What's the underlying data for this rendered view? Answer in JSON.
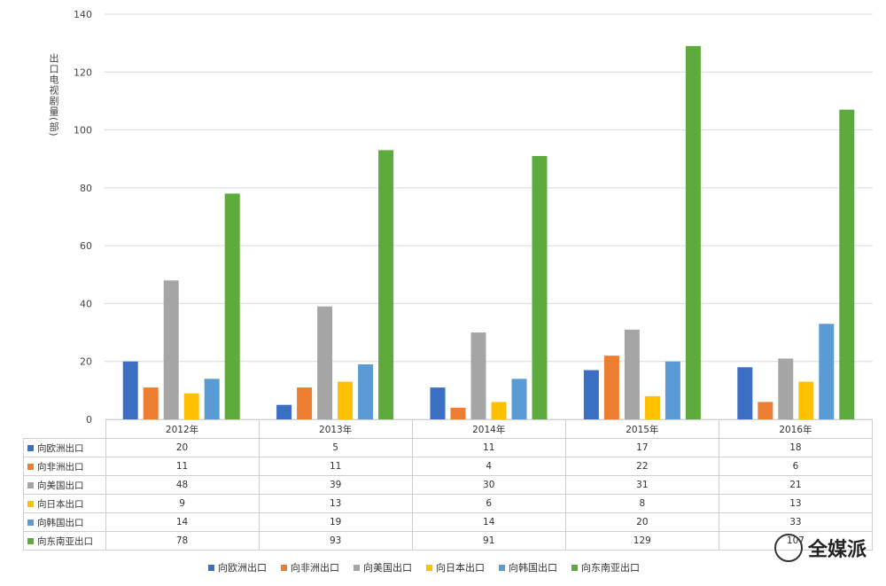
{
  "chart_data": {
    "type": "bar",
    "categories": [
      "2012年",
      "2013年",
      "2014年",
      "2015年",
      "2016年"
    ],
    "ylabel": "出口电视剧量(部)",
    "ylim": [
      0,
      140
    ],
    "yticks": [
      0,
      20,
      40,
      60,
      80,
      100,
      120,
      140
    ],
    "grid": true,
    "legend_position": "bottom",
    "series": [
      {
        "name": "向欧洲出口",
        "color": "#3a6fc4",
        "values": [
          20,
          5,
          11,
          17,
          18
        ]
      },
      {
        "name": "向非洲出口",
        "color": "#ed7d31",
        "values": [
          11,
          11,
          4,
          22,
          6
        ]
      },
      {
        "name": "向美国出口",
        "color": "#a5a5a5",
        "values": [
          48,
          39,
          30,
          31,
          21
        ]
      },
      {
        "name": "向日本出口",
        "color": "#ffc000",
        "values": [
          9,
          13,
          6,
          8,
          13
        ]
      },
      {
        "name": "向韩国出口",
        "color": "#5b9bd5",
        "values": [
          14,
          19,
          14,
          20,
          33
        ]
      },
      {
        "name": "向东南亚出口",
        "color": "#5cab3c",
        "values": [
          78,
          93,
          91,
          129,
          107
        ]
      }
    ]
  },
  "watermark": "全媒派"
}
